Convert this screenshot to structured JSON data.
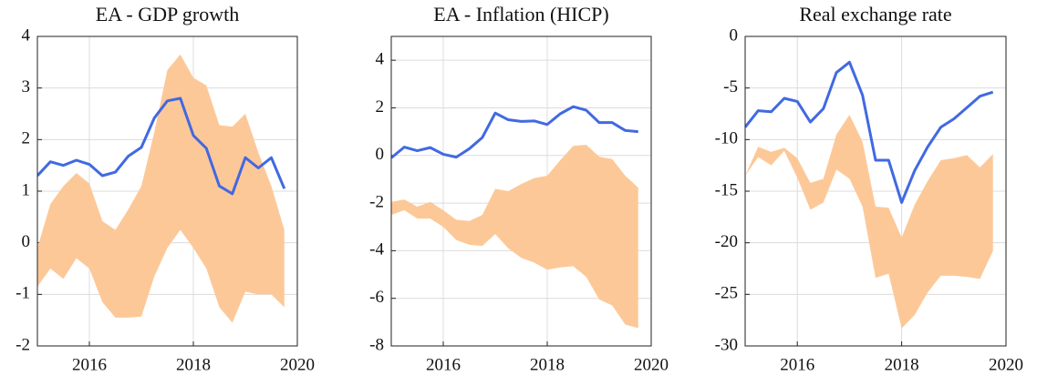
{
  "chart_data": [
    {
      "type": "band-line",
      "title": "EA - GDP growth",
      "x": [
        2015,
        2015.25,
        2015.5,
        2015.75,
        2016,
        2016.25,
        2016.5,
        2016.75,
        2017,
        2017.25,
        2017.5,
        2017.75,
        2018,
        2018.25,
        2018.5,
        2018.75,
        2019,
        2019.25,
        2019.5,
        2019.75
      ],
      "line": {
        "color": "#4169e1",
        "values": [
          1.3,
          1.57,
          1.5,
          1.6,
          1.52,
          1.3,
          1.37,
          1.68,
          1.85,
          2.42,
          2.75,
          2.8,
          2.08,
          1.83,
          1.1,
          0.95,
          1.65,
          1.45,
          1.65,
          1.05
        ]
      },
      "band": {
        "color": "#fdc898",
        "upper": [
          -0.1,
          0.75,
          1.1,
          1.35,
          1.15,
          0.42,
          0.25,
          0.65,
          1.1,
          2.15,
          3.35,
          3.65,
          3.2,
          3.05,
          2.28,
          2.25,
          2.5,
          1.75,
          1.1,
          0.25
        ],
        "lower": [
          -0.85,
          -0.5,
          -0.7,
          -0.3,
          -0.5,
          -1.15,
          -1.45,
          -1.45,
          -1.43,
          -0.65,
          -0.1,
          0.25,
          -0.1,
          -0.5,
          -1.25,
          -1.55,
          -0.95,
          -1.0,
          -1.0,
          -1.25
        ]
      },
      "xlim": [
        2015,
        2020
      ],
      "xticks": [
        2016,
        2018,
        2020
      ],
      "ylim": [
        -2,
        4
      ],
      "yticks": [
        -2,
        -1,
        0,
        1,
        2,
        3,
        4
      ],
      "grid": true
    },
    {
      "type": "band-line",
      "title": "EA - Inflation (HICP)",
      "x": [
        2015,
        2015.25,
        2015.5,
        2015.75,
        2016,
        2016.25,
        2016.5,
        2016.75,
        2017,
        2017.25,
        2017.5,
        2017.75,
        2018,
        2018.25,
        2018.5,
        2018.75,
        2019,
        2019.25,
        2019.5,
        2019.75
      ],
      "line": {
        "color": "#4169e1",
        "values": [
          -0.1,
          0.35,
          0.2,
          0.33,
          0.05,
          -0.07,
          0.28,
          0.75,
          1.78,
          1.5,
          1.43,
          1.45,
          1.3,
          1.75,
          2.05,
          1.9,
          1.38,
          1.38,
          1.05,
          1.0
        ]
      },
      "band": {
        "color": "#fdc898",
        "upper": [
          -1.95,
          -1.85,
          -2.15,
          -1.95,
          -2.3,
          -2.7,
          -2.75,
          -2.5,
          -1.4,
          -1.5,
          -1.2,
          -0.95,
          -0.85,
          -0.2,
          0.4,
          0.45,
          -0.05,
          -0.15,
          -0.85,
          -1.35
        ],
        "lower": [
          -2.5,
          -2.3,
          -2.65,
          -2.65,
          -3.0,
          -3.55,
          -3.75,
          -3.8,
          -3.3,
          -3.9,
          -4.3,
          -4.5,
          -4.8,
          -4.7,
          -4.65,
          -5.1,
          -6.05,
          -6.3,
          -7.1,
          -7.25
        ]
      },
      "xlim": [
        2015,
        2020
      ],
      "xticks": [
        2016,
        2018,
        2020
      ],
      "ylim": [
        -8,
        5
      ],
      "yticks": [
        -8,
        -6,
        -4,
        -2,
        0,
        2,
        4
      ],
      "grid": true
    },
    {
      "type": "band-line",
      "title": "Real exchange rate",
      "x": [
        2015,
        2015.25,
        2015.5,
        2015.75,
        2016,
        2016.25,
        2016.5,
        2016.75,
        2017,
        2017.25,
        2017.5,
        2017.75,
        2018,
        2018.25,
        2018.5,
        2018.75,
        2019,
        2019.25,
        2019.5,
        2019.75
      ],
      "line": {
        "color": "#4169e1",
        "values": [
          -8.8,
          -7.2,
          -7.3,
          -6.0,
          -6.3,
          -8.3,
          -7.0,
          -3.5,
          -2.5,
          -5.7,
          -12.0,
          -12.0,
          -16.1,
          -13.0,
          -10.7,
          -8.8,
          -8.0,
          -6.9,
          -5.8,
          -5.4
        ]
      },
      "band": {
        "color": "#fdc898",
        "upper": [
          -13.5,
          -10.7,
          -11.2,
          -10.8,
          -11.8,
          -14.2,
          -13.8,
          -9.5,
          -7.6,
          -10.2,
          -16.5,
          -16.6,
          -19.5,
          -16.3,
          -14.0,
          -12.0,
          -11.8,
          -11.5,
          -12.7,
          -11.4
        ],
        "lower": [
          -13.5,
          -11.7,
          -12.5,
          -11.1,
          -13.7,
          -16.8,
          -16.1,
          -12.9,
          -13.8,
          -16.5,
          -23.4,
          -23.0,
          -28.3,
          -27.0,
          -24.8,
          -23.2,
          -23.2,
          -23.3,
          -23.5,
          -20.8
        ]
      },
      "xlim": [
        2015,
        2020
      ],
      "xticks": [
        2016,
        2018,
        2020
      ],
      "ylim": [
        -30,
        0
      ],
      "yticks": [
        -30,
        -25,
        -20,
        -15,
        -10,
        -5,
        0
      ],
      "grid": true
    }
  ]
}
